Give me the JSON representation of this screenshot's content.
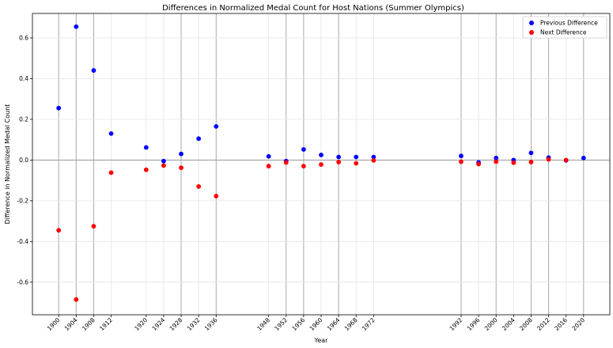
{
  "chart_data": {
    "type": "scatter",
    "title": "Differences in Normalized Medal Count for Host Nations (Summer Olympics)",
    "xlabel": "Year",
    "ylabel": "Difference in Normalized Medal Count",
    "xlim": [
      1894,
      2026
    ],
    "ylim": [
      -0.76,
      0.72
    ],
    "x_ticks": [
      1900,
      1904,
      1908,
      1912,
      1920,
      1924,
      1928,
      1932,
      1936,
      1948,
      1952,
      1956,
      1960,
      1964,
      1968,
      1972,
      1992,
      1996,
      2000,
      2004,
      2008,
      2012,
      2016,
      2020
    ],
    "y_ticks": [
      -0.6,
      -0.4,
      -0.2,
      0.0,
      0.2,
      0.4,
      0.6
    ],
    "y_tick_labels": [
      "-0.6",
      "-0.4",
      "-0.2",
      "0.0",
      "0.2",
      "0.4",
      "0.6"
    ],
    "x_major_gridlines": [
      1900,
      1904,
      1908,
      1928,
      1936,
      1952,
      1956,
      1964,
      1992,
      2000,
      2008,
      2012,
      2020
    ],
    "zero_line": 0,
    "grid": true,
    "legend_position": "top-right",
    "series": [
      {
        "name": "Previous Difference",
        "color": "#0000ff",
        "points": [
          {
            "x": 1900,
            "y": 0.255
          },
          {
            "x": 1904,
            "y": 0.655
          },
          {
            "x": 1908,
            "y": 0.44
          },
          {
            "x": 1912,
            "y": 0.13
          },
          {
            "x": 1920,
            "y": 0.062
          },
          {
            "x": 1924,
            "y": -0.005
          },
          {
            "x": 1928,
            "y": 0.03
          },
          {
            "x": 1932,
            "y": 0.105
          },
          {
            "x": 1936,
            "y": 0.165
          },
          {
            "x": 1948,
            "y": 0.018
          },
          {
            "x": 1952,
            "y": -0.005
          },
          {
            "x": 1956,
            "y": 0.052
          },
          {
            "x": 1960,
            "y": 0.025
          },
          {
            "x": 1964,
            "y": 0.015
          },
          {
            "x": 1968,
            "y": 0.015
          },
          {
            "x": 1972,
            "y": 0.015
          },
          {
            "x": 1992,
            "y": 0.02
          },
          {
            "x": 1996,
            "y": -0.012
          },
          {
            "x": 2000,
            "y": 0.01
          },
          {
            "x": 2004,
            "y": 0.0
          },
          {
            "x": 2008,
            "y": 0.035
          },
          {
            "x": 2012,
            "y": 0.012
          },
          {
            "x": 2016,
            "y": -0.002
          },
          {
            "x": 2020,
            "y": 0.01
          }
        ]
      },
      {
        "name": "Next Difference",
        "color": "#ff0000",
        "points": [
          {
            "x": 1900,
            "y": -0.345
          },
          {
            "x": 1904,
            "y": -0.685
          },
          {
            "x": 1908,
            "y": -0.325
          },
          {
            "x": 1912,
            "y": -0.062
          },
          {
            "x": 1920,
            "y": -0.048
          },
          {
            "x": 1924,
            "y": -0.027
          },
          {
            "x": 1928,
            "y": -0.038
          },
          {
            "x": 1932,
            "y": -0.13
          },
          {
            "x": 1936,
            "y": -0.177
          },
          {
            "x": 1948,
            "y": -0.03
          },
          {
            "x": 1952,
            "y": -0.012
          },
          {
            "x": 1956,
            "y": -0.03
          },
          {
            "x": 1960,
            "y": -0.022
          },
          {
            "x": 1964,
            "y": -0.01
          },
          {
            "x": 1968,
            "y": -0.016
          },
          {
            "x": 1972,
            "y": -0.002
          },
          {
            "x": 1992,
            "y": -0.008
          },
          {
            "x": 1996,
            "y": -0.02
          },
          {
            "x": 2000,
            "y": -0.008
          },
          {
            "x": 2004,
            "y": -0.013
          },
          {
            "x": 2008,
            "y": -0.01
          },
          {
            "x": 2012,
            "y": 0.003
          },
          {
            "x": 2016,
            "y": 0.0
          }
        ]
      }
    ]
  }
}
